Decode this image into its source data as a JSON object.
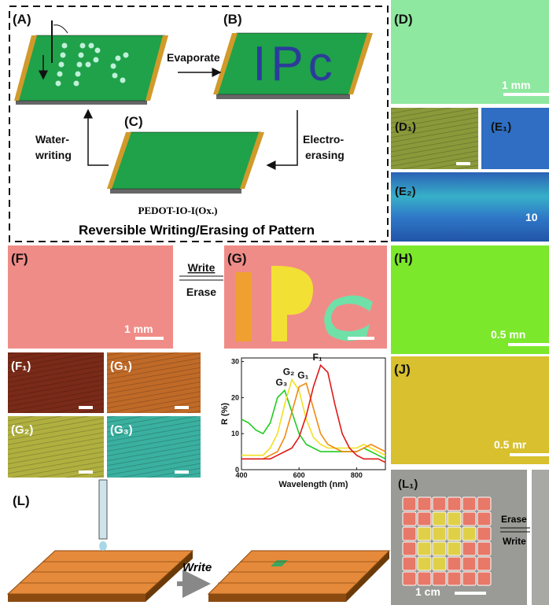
{
  "labels": {
    "A": "(A)",
    "B": "(B)",
    "C": "(C)",
    "D": "(D)",
    "D1": "(D₁)",
    "E1": "(E₁)",
    "E2": "(E₂)",
    "F": "(F)",
    "G": "(G)",
    "H": "(H)",
    "J": "(J)",
    "F1": "(F₁)",
    "G1": "(G₁)",
    "G2": "(G₂)",
    "G3": "(G₃)",
    "L": "(L)",
    "L1": "(L₁)"
  },
  "texts": {
    "evaporate": "Evaporate",
    "water1": "Water-",
    "water2": "writing",
    "electro1": "Electro-",
    "electro2": "erasing",
    "pattern": "IPc",
    "material": "PEDOT-IO-I(Ox.)",
    "caption": "Reversible Writing/Erasing of Pattern",
    "scale_d": "1 mm",
    "scale_e2": "10",
    "write_fg": "Write",
    "erase_fg": "Erase",
    "scale_f": "1 mm",
    "scale_h": "0.5 mn",
    "scale_j": "0.5 mr",
    "write_l": "Write",
    "erase_l1": "Erase",
    "write_l1": "Write",
    "scale_l1": "1 cm"
  },
  "chart_data": {
    "type": "line",
    "x_label": "Wavelength (nm)",
    "y_label": "R (%)",
    "x": [
      400,
      425,
      450,
      475,
      500,
      525,
      550,
      575,
      600,
      625,
      650,
      675,
      700,
      725,
      750,
      775,
      800,
      825,
      850,
      875,
      900
    ],
    "series": [
      {
        "name": "G₃",
        "color": "#22cc22",
        "values": [
          14,
          13,
          11,
          10,
          13,
          20,
          22,
          16,
          10,
          7,
          6,
          5,
          5,
          5,
          5,
          5,
          5,
          6,
          5,
          4,
          3
        ]
      },
      {
        "name": "G₂",
        "color": "#f2e020",
        "values": [
          4,
          4,
          4,
          4,
          6,
          10,
          18,
          25,
          22,
          14,
          9,
          7,
          6,
          6,
          6,
          6,
          6,
          7,
          6,
          5,
          4
        ]
      },
      {
        "name": "G₁",
        "color": "#f08a10",
        "values": [
          3,
          3,
          3,
          3,
          4,
          5,
          9,
          16,
          23,
          24,
          17,
          10,
          7,
          6,
          5,
          5,
          5,
          6,
          7,
          6,
          5
        ]
      },
      {
        "name": "F₁",
        "color": "#e01818",
        "values": [
          3,
          3,
          3,
          3,
          3,
          4,
          5,
          6,
          9,
          15,
          23,
          29,
          27,
          18,
          10,
          6,
          4,
          3,
          3,
          3,
          2
        ]
      }
    ],
    "xlim": [
      400,
      900
    ],
    "ylim": [
      0,
      31
    ],
    "xticks": [
      400,
      600,
      800
    ],
    "yticks": [
      0,
      10,
      20,
      30
    ]
  }
}
